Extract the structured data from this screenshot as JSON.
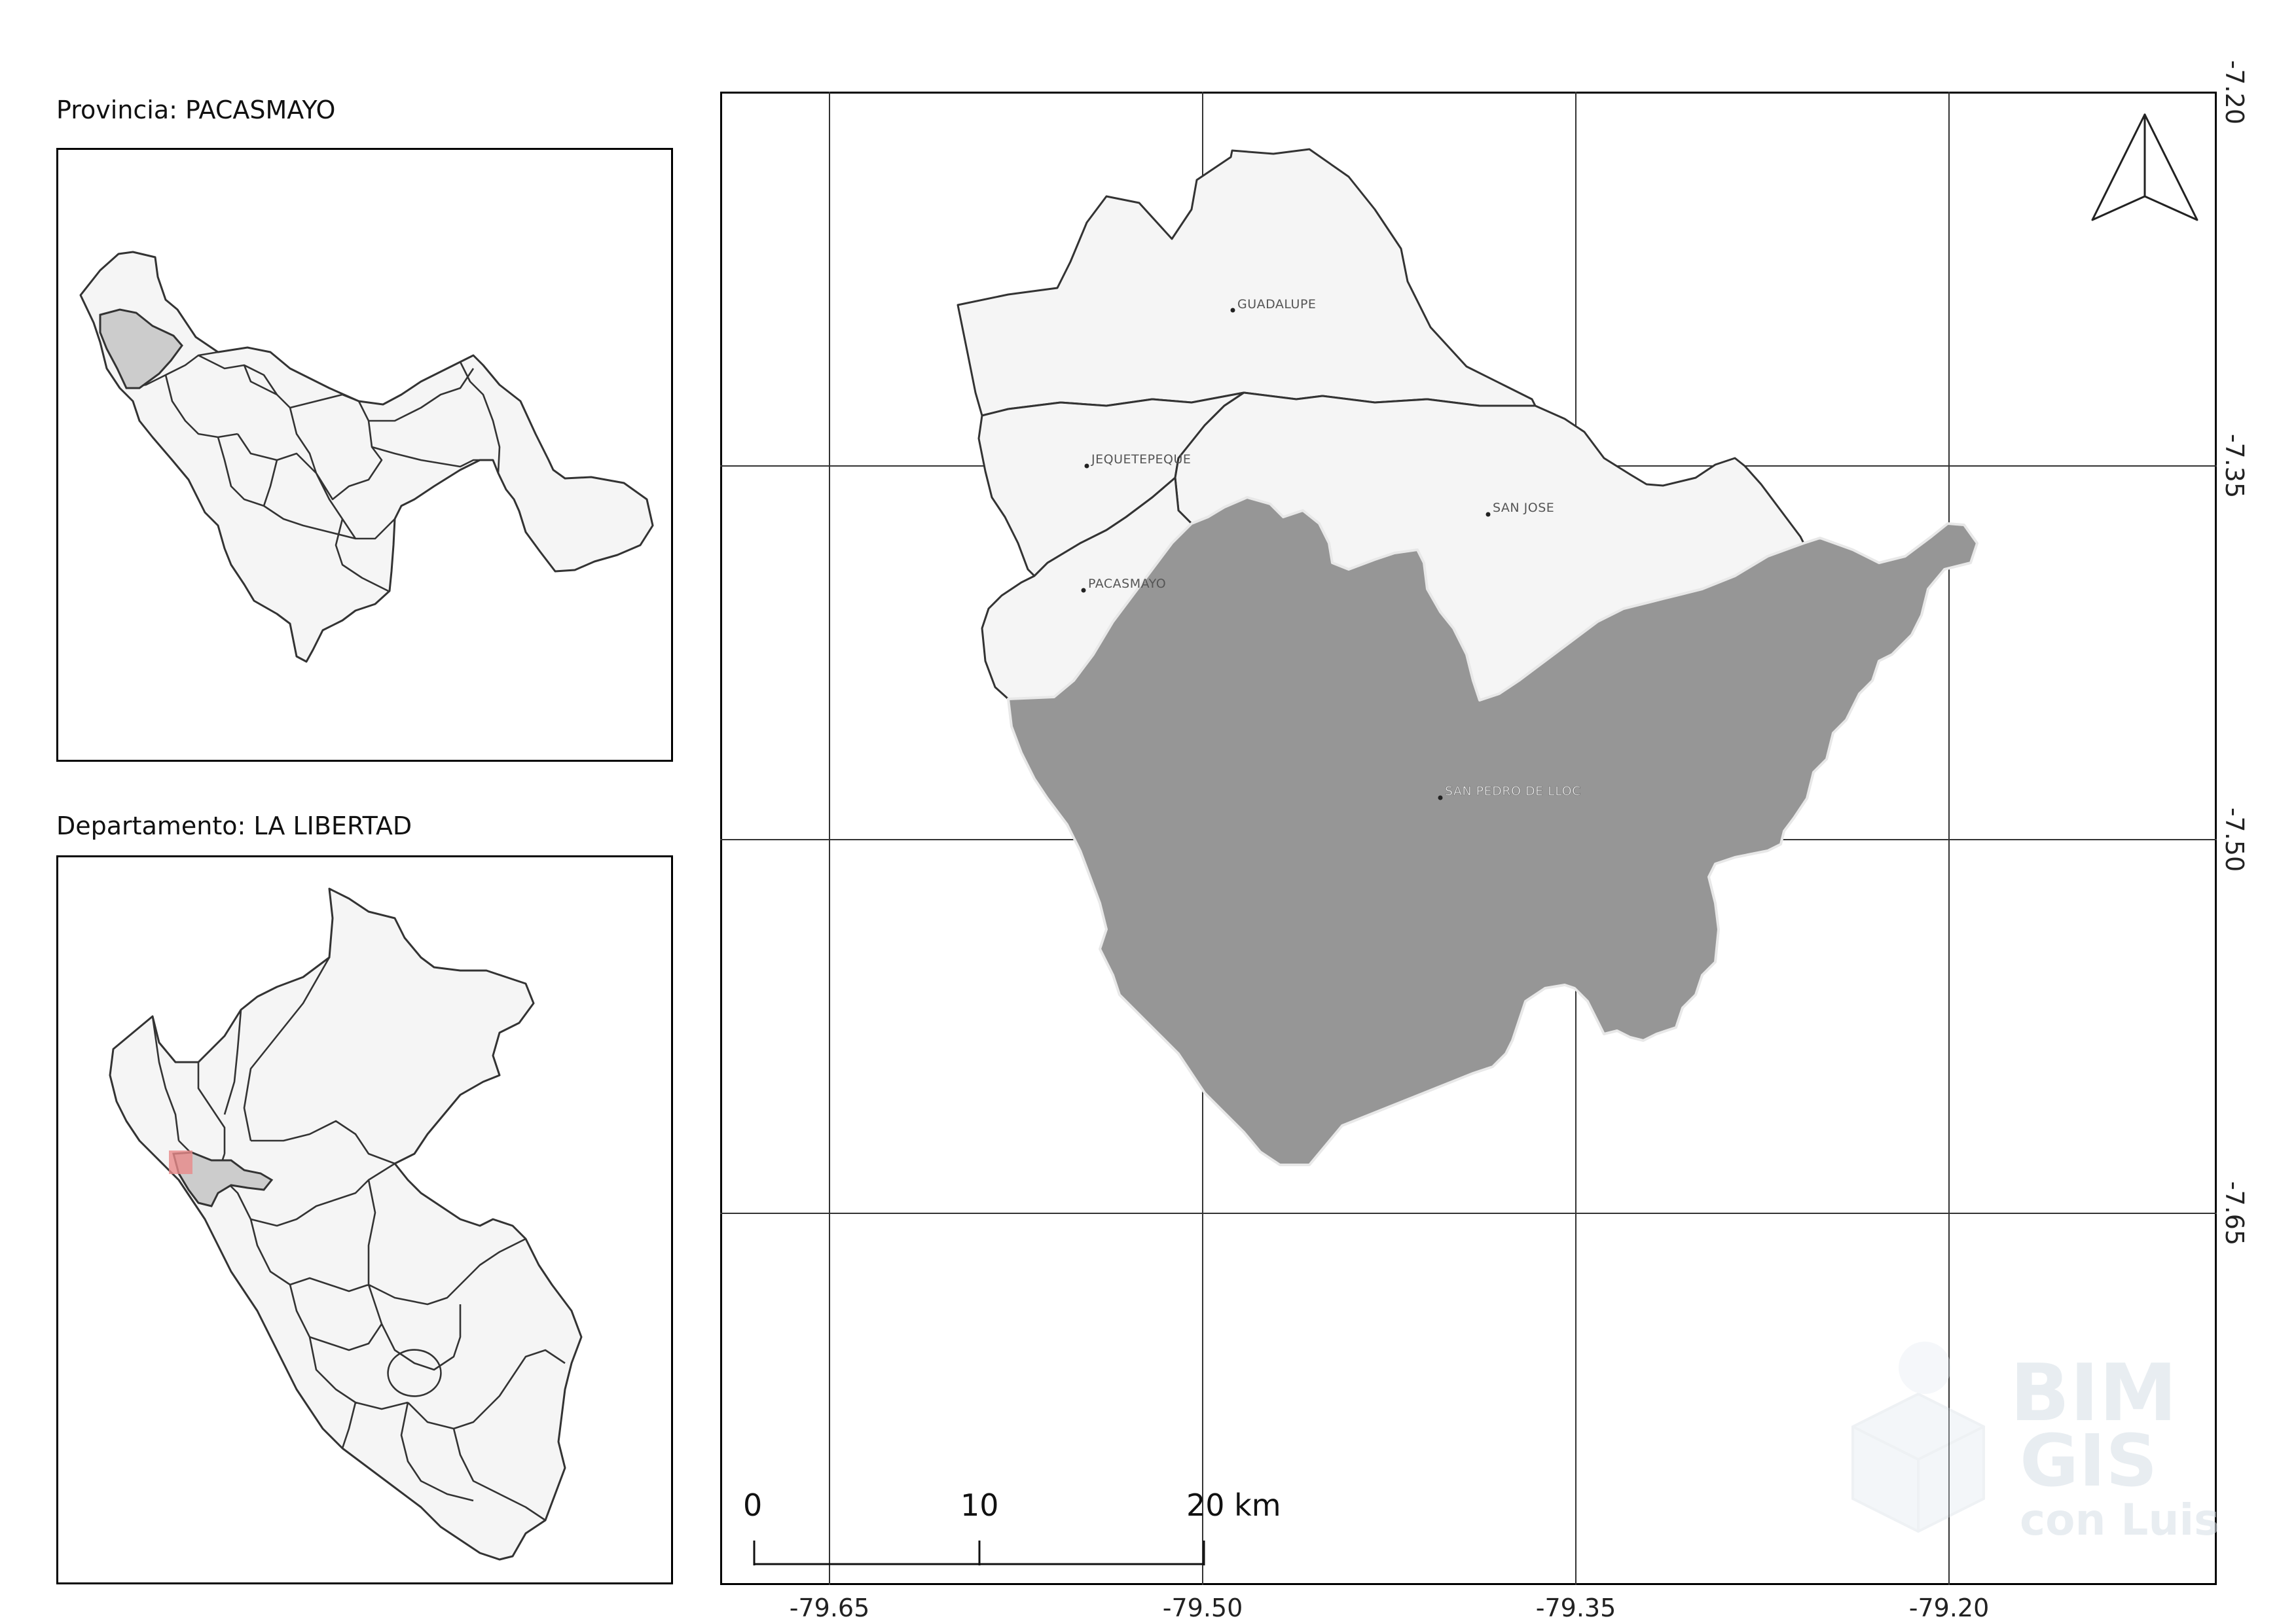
{
  "inset_province": {
    "title": "Provincia: PACASMAYO",
    "highlight_color": "#cccccc"
  },
  "inset_department": {
    "title": "Departamento: LA LIBERTAD",
    "highlight_color": "#cccccc",
    "marker_color": "#e88a8a"
  },
  "main_map": {
    "districts": [
      {
        "name": "GUADALUPE"
      },
      {
        "name": "JEQUETEPEQUE"
      },
      {
        "name": "SAN JOSE"
      },
      {
        "name": "PACASMAYO"
      },
      {
        "name": "SAN PEDRO DE LLOC",
        "selected": true
      }
    ],
    "selected_fill": "#969696",
    "base_fill": "#f5f5f5",
    "x_ticks": [
      "-79.65",
      "-79.50",
      "-79.35",
      "-79.20"
    ],
    "y_ticks": [
      "-7.20",
      "-7.35",
      "-7.50",
      "-7.65"
    ],
    "north_arrow": "north-arrow-icon",
    "scale_bar": {
      "labels": [
        "0",
        "10",
        "20 km"
      ]
    }
  },
  "watermark": {
    "line1": "BIM",
    "line2": "GIS",
    "line3": "con Luis"
  }
}
